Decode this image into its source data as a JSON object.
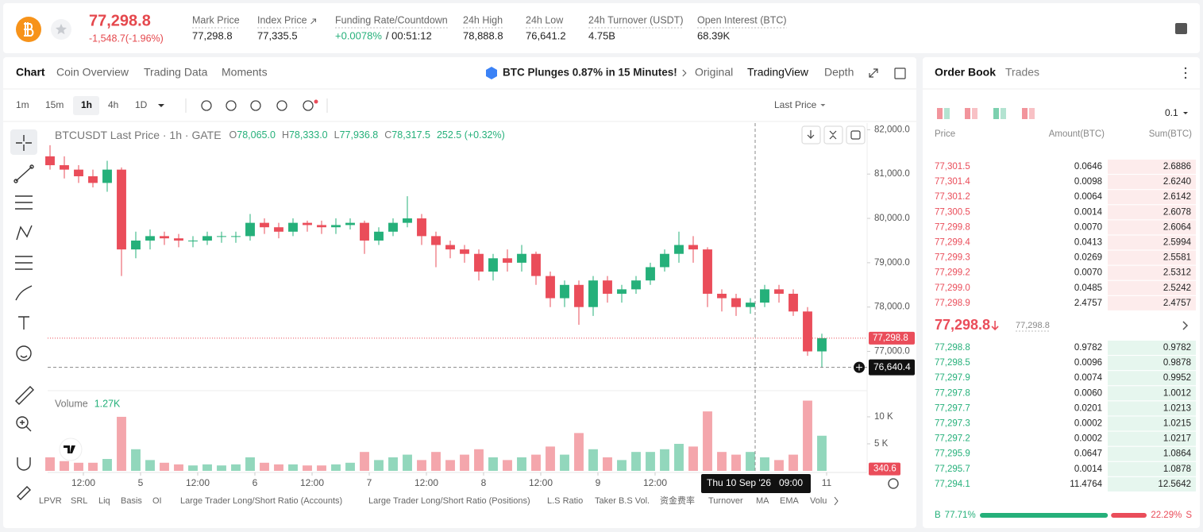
{
  "header": {
    "price": "77,298.8",
    "change": "-1,548.7(-1.96%)",
    "stats": [
      {
        "label": "Mark Price",
        "value": "77,298.8"
      },
      {
        "label": "Index Price",
        "value": "77,335.5"
      },
      {
        "label": "Funding Rate/Countdown",
        "value": "+0.0078%",
        "extra": "/ 00:51:12"
      },
      {
        "label": "24h High",
        "value": "78,888.8"
      },
      {
        "label": "24h Low",
        "value": "76,641.2"
      },
      {
        "label": "24h Turnover (USDT)",
        "value": "4.75B"
      },
      {
        "label": "Open Interest (BTC)",
        "value": "68.39K"
      }
    ]
  },
  "tabs": [
    "Chart",
    "Coin Overview",
    "Trading Data",
    "Moments"
  ],
  "news": "BTC Plunges 0.87% in 15 Minutes!",
  "views": [
    "Original",
    "TradingView",
    "Depth"
  ],
  "intervals": [
    "1m",
    "15m",
    "1h",
    "4h",
    "1D"
  ],
  "price_type": "Last Price",
  "chart_data": {
    "type": "candlestick",
    "legend_title": "BTCUSDT Last Price · 1h · GATE",
    "legend_ohlc": [
      {
        "key": "O",
        "value": "78,065.0"
      },
      {
        "key": "H",
        "value": "78,333.0"
      },
      {
        "key": "L",
        "value": "77,936.8"
      },
      {
        "key": "C",
        "value": "78,317.5"
      }
    ],
    "legend_change": "252.5 (+0.32%)",
    "up_color": "#25b07a",
    "down_color": "#ea4d5a",
    "x": [
      -7,
      -4,
      -1,
      2,
      5,
      8,
      11,
      14,
      17,
      20,
      23,
      26,
      29,
      32,
      35,
      38,
      41,
      44,
      47,
      50,
      53,
      56,
      59,
      62,
      65,
      68,
      71,
      74,
      77,
      80,
      83,
      86,
      89,
      92,
      95,
      98,
      101,
      104,
      107,
      110,
      113,
      116,
      119,
      122,
      125,
      128,
      131,
      134,
      137,
      140,
      143,
      146,
      149,
      152,
      155
    ],
    "open": [
      81400,
      81200,
      81100,
      80950,
      80800,
      81100,
      79300,
      79500,
      79600,
      79550,
      79500,
      79500,
      79600,
      79600,
      79600,
      79900,
      79800,
      79700,
      79900,
      79850,
      79800,
      79850,
      79900,
      79500,
      79700,
      79900,
      80000,
      79600,
      79400,
      79300,
      79200,
      78800,
      79100,
      79000,
      79200,
      78700,
      78200,
      78500,
      78000,
      78600,
      78300,
      78400,
      78600,
      78900,
      79200,
      79400,
      79300,
      78300,
      78200,
      78000,
      78100,
      78400,
      78300,
      77900,
      77000
    ],
    "high": [
      81650,
      81400,
      81200,
      81100,
      81300,
      81150,
      79700,
      79750,
      79700,
      79650,
      79600,
      79700,
      79700,
      79700,
      80100,
      80000,
      79900,
      80000,
      79950,
      79950,
      80000,
      80000,
      79950,
      79800,
      80000,
      80500,
      80100,
      79700,
      79500,
      79400,
      79300,
      79200,
      79300,
      79400,
      79250,
      78800,
      78600,
      78600,
      78700,
      78700,
      78500,
      78700,
      79000,
      79300,
      79700,
      79600,
      79350,
      78400,
      78300,
      78200,
      78500,
      78500,
      78400,
      78000,
      77400
    ],
    "low": [
      81100,
      80900,
      80800,
      80700,
      80600,
      78700,
      79100,
      79300,
      79400,
      79350,
      79350,
      79400,
      79450,
      79450,
      79500,
      79650,
      79550,
      79600,
      79700,
      79650,
      79650,
      79750,
      79200,
      79400,
      79600,
      79800,
      79400,
      78900,
      79100,
      79000,
      78600,
      78600,
      78800,
      78800,
      78500,
      78000,
      78000,
      77600,
      77800,
      78100,
      78100,
      78300,
      78500,
      78800,
      79000,
      79000,
      78000,
      77900,
      77800,
      77850,
      78000,
      78100,
      77800,
      76900,
      76640
    ],
    "close": [
      81200,
      81100,
      80950,
      80800,
      81100,
      79300,
      79500,
      79600,
      79550,
      79500,
      79500,
      79600,
      79600,
      79600,
      79900,
      79800,
      79700,
      79900,
      79850,
      79800,
      79850,
      79900,
      79500,
      79700,
      79900,
      80000,
      79600,
      79400,
      79300,
      79200,
      78800,
      79100,
      79000,
      79200,
      78700,
      78200,
      78500,
      78000,
      78600,
      78300,
      78400,
      78600,
      78900,
      79200,
      79400,
      79300,
      78300,
      78200,
      78000,
      78100,
      78400,
      78300,
      77900,
      77000,
      77298.8
    ],
    "xlim": [
      -7.5,
      164
    ],
    "xticks": [
      {
        "value": 0,
        "label": "12:00"
      },
      {
        "value": 12,
        "label": "5"
      },
      {
        "value": 24,
        "label": "12:00"
      },
      {
        "value": 36,
        "label": "6"
      },
      {
        "value": 48,
        "label": "12:00"
      },
      {
        "value": 60,
        "label": "7"
      },
      {
        "value": 72,
        "label": "12:00"
      },
      {
        "value": 84,
        "label": "8"
      },
      {
        "value": 96,
        "label": "12:00"
      },
      {
        "value": 108,
        "label": "9"
      },
      {
        "value": 120,
        "label": "12:00"
      },
      {
        "value": 156,
        "label": "11"
      }
    ],
    "ylim": [
      76150,
      82150
    ],
    "yticks": [
      {
        "value": 82000,
        "label": "82,000.0"
      },
      {
        "value": 81000,
        "label": "81,000.0"
      },
      {
        "value": 80000,
        "label": "80,000.0"
      },
      {
        "value": 79000,
        "label": "79,000.0"
      },
      {
        "value": 78000,
        "label": "78,000.0"
      },
      {
        "value": 77000,
        "label": "77,000.0"
      }
    ],
    "last_price": {
      "value": 77298.8,
      "label": "77,298.8"
    },
    "crosshair": {
      "x": 141,
      "y": 76640.4,
      "y_label": "76,640.4",
      "date": "Thu 10 Sep '26",
      "time": "09:00"
    },
    "volume_title": "Volume",
    "volume_value": "1.27K",
    "volume": [
      2500,
      1800,
      1500,
      1500,
      2200,
      10000,
      4000,
      2000,
      1500,
      1200,
      1000,
      1200,
      1000,
      1200,
      2500,
      1500,
      1200,
      1200,
      1000,
      1000,
      1200,
      1500,
      3500,
      2000,
      2500,
      3000,
      2000,
      3500,
      2000,
      3000,
      4000,
      2500,
      2000,
      2500,
      3000,
      4500,
      3000,
      7000,
      4000,
      2500,
      2000,
      3500,
      3500,
      4000,
      5000,
      4500,
      11000,
      3500,
      3000,
      3500,
      2500,
      2000,
      3000,
      13000,
      6500
    ],
    "vlim": [
      0,
      14400
    ],
    "vticks": [
      {
        "value": 10000,
        "label": "10 K"
      },
      {
        "value": 5000,
        "label": "5 K"
      }
    ],
    "volume_tag": {
      "value": 340.6,
      "label": "340.6"
    }
  },
  "indicators": [
    "LPVR",
    "SRL",
    "Liq",
    "Basis",
    "OI",
    "Large Trader Long/Short Ratio (Accounts)",
    "Large Trader Long/Short Ratio (Positions)",
    "L.S Ratio",
    "Taker B.S Vol.",
    "资金费率",
    "Turnover",
    "MA",
    "EMA",
    "Volu"
  ],
  "order_book": {
    "tabs": [
      "Order Book",
      "Trades"
    ],
    "precision": "0.1",
    "columns": [
      "Price",
      "Amount(BTC)",
      "Sum(BTC)"
    ],
    "asks": [
      [
        "77,301.5",
        "0.0646",
        "2.6886"
      ],
      [
        "77,301.4",
        "0.0098",
        "2.6240"
      ],
      [
        "77,301.2",
        "0.0064",
        "2.6142"
      ],
      [
        "77,300.5",
        "0.0014",
        "2.6078"
      ],
      [
        "77,299.8",
        "0.0070",
        "2.6064"
      ],
      [
        "77,299.4",
        "0.0413",
        "2.5994"
      ],
      [
        "77,299.3",
        "0.0269",
        "2.5581"
      ],
      [
        "77,299.2",
        "0.0070",
        "2.5312"
      ],
      [
        "77,299.0",
        "0.0485",
        "2.5242"
      ],
      [
        "77,298.9",
        "2.4757",
        "2.4757"
      ]
    ],
    "mid_price": "77,298.8",
    "mark_price": "77,298.8",
    "bids": [
      [
        "77,298.8",
        "0.9782",
        "0.9782"
      ],
      [
        "77,298.5",
        "0.0096",
        "0.9878"
      ],
      [
        "77,297.9",
        "0.0074",
        "0.9952"
      ],
      [
        "77,297.8",
        "0.0060",
        "1.0012"
      ],
      [
        "77,297.7",
        "0.0201",
        "1.0213"
      ],
      [
        "77,297.3",
        "0.0002",
        "1.0215"
      ],
      [
        "77,297.2",
        "0.0002",
        "1.0217"
      ],
      [
        "77,295.9",
        "0.0647",
        "1.0864"
      ],
      [
        "77,295.7",
        "0.0014",
        "1.0878"
      ],
      [
        "77,294.1",
        "11.4764",
        "12.5642"
      ]
    ],
    "buy_label": "B",
    "buy_pct": 77.71,
    "buy_pct_label": "77.71%",
    "sell_label": "S",
    "sell_pct": 22.29,
    "sell_pct_label": "22.29%"
  }
}
